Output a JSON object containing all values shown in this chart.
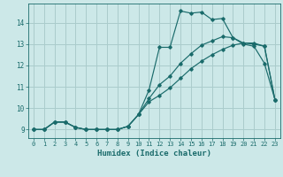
{
  "xlabel": "Humidex (Indice chaleur)",
  "background_color": "#cce8e8",
  "grid_color": "#aacccc",
  "line_color": "#1a6b6b",
  "xlim": [
    -0.5,
    23.5
  ],
  "ylim": [
    8.6,
    14.9
  ],
  "yticks": [
    9,
    10,
    11,
    12,
    13,
    14
  ],
  "xticks": [
    0,
    1,
    2,
    3,
    4,
    5,
    6,
    7,
    8,
    9,
    10,
    11,
    12,
    13,
    14,
    15,
    16,
    17,
    18,
    19,
    20,
    21,
    22,
    23
  ],
  "series1_x": [
    0,
    1,
    2,
    3,
    4,
    5,
    6,
    7,
    8,
    9,
    10,
    11,
    12,
    13,
    14,
    15,
    16,
    17,
    18,
    19,
    20,
    21,
    22,
    23
  ],
  "series1_y": [
    9.0,
    9.0,
    9.35,
    9.35,
    9.1,
    9.0,
    9.0,
    9.0,
    9.0,
    9.15,
    9.7,
    10.85,
    12.85,
    12.85,
    14.55,
    14.45,
    14.5,
    14.15,
    14.2,
    13.3,
    13.0,
    12.9,
    12.1,
    10.4
  ],
  "series2_x": [
    0,
    1,
    2,
    3,
    4,
    5,
    6,
    7,
    8,
    9,
    10,
    11,
    12,
    13,
    14,
    15,
    16,
    17,
    18,
    19,
    20,
    21,
    22,
    23
  ],
  "series2_y": [
    9.0,
    9.0,
    9.35,
    9.35,
    9.1,
    9.0,
    9.0,
    9.0,
    9.0,
    9.15,
    9.7,
    10.45,
    11.1,
    11.5,
    12.1,
    12.55,
    12.95,
    13.15,
    13.35,
    13.3,
    13.05,
    13.0,
    12.9,
    10.4
  ],
  "series3_x": [
    0,
    1,
    2,
    3,
    4,
    5,
    6,
    7,
    8,
    9,
    10,
    11,
    12,
    13,
    14,
    15,
    16,
    17,
    18,
    19,
    20,
    21,
    22,
    23
  ],
  "series3_y": [
    9.0,
    9.0,
    9.35,
    9.35,
    9.1,
    9.0,
    9.0,
    9.0,
    9.0,
    9.15,
    9.7,
    10.3,
    10.6,
    10.95,
    11.4,
    11.85,
    12.2,
    12.5,
    12.75,
    12.95,
    13.05,
    13.05,
    12.9,
    10.4
  ]
}
